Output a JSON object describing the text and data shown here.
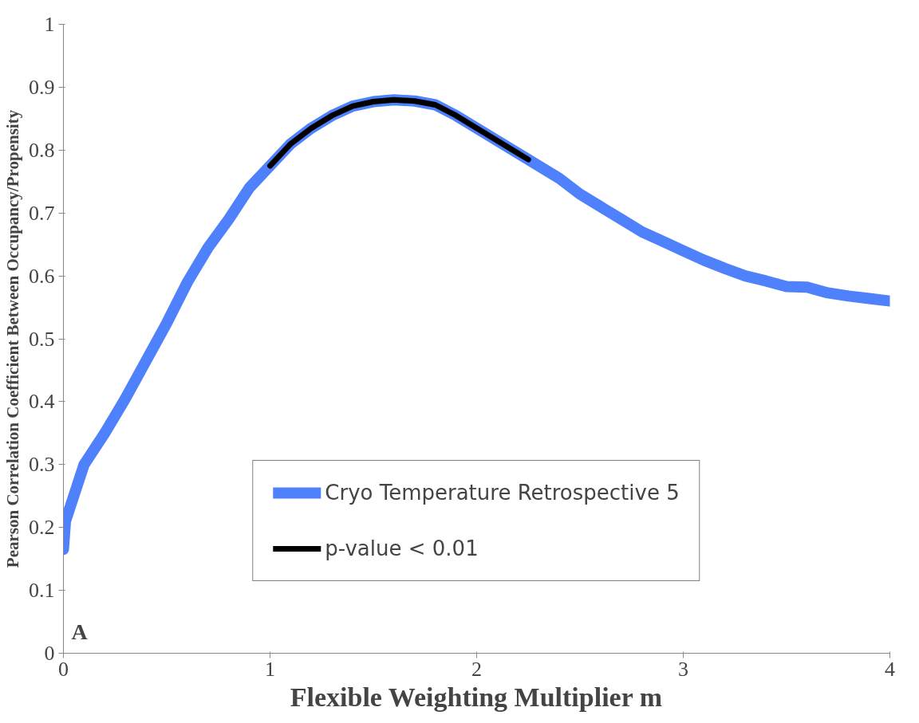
{
  "chart_data": {
    "type": "line",
    "xlabel": "Flexible Weighting Multiplier m",
    "ylabel": "Pearson Correlation Coefficient Between Occupancy/Propensity",
    "annotations": [
      "A"
    ],
    "xlim": [
      0,
      4
    ],
    "xticks": [
      0,
      1,
      2,
      3,
      4
    ],
    "ylim": [
      0,
      1
    ],
    "yticks": [
      0,
      0.1,
      0.2,
      0.3,
      0.4,
      0.5,
      0.6,
      0.7,
      0.8,
      0.9,
      1
    ],
    "grid": false,
    "legend": "bottom",
    "marker": "none",
    "line_style": "solid",
    "series": [
      {
        "name": "Cryo Temperature Retrospective 5",
        "color": "#4f81fd",
        "x": [
          0,
          0.01,
          0.1,
          0.2,
          0.3,
          0.4,
          0.5,
          0.6,
          0.7,
          0.8,
          0.9,
          1.0,
          1.1,
          1.2,
          1.3,
          1.4,
          1.5,
          1.6,
          1.7,
          1.8,
          1.9,
          2.0,
          2.1,
          2.2,
          2.3,
          2.4,
          2.5,
          2.6,
          2.7,
          2.8,
          2.9,
          3.0,
          3.1,
          3.2,
          3.3,
          3.4,
          3.5,
          3.6,
          3.7,
          3.8,
          3.9,
          4.0
        ],
        "values": [
          0.165,
          0.21,
          0.3,
          0.35,
          0.405,
          0.465,
          0.525,
          0.59,
          0.645,
          0.69,
          0.74,
          0.775,
          0.81,
          0.835,
          0.855,
          0.87,
          0.877,
          0.88,
          0.878,
          0.872,
          0.855,
          0.835,
          0.815,
          0.795,
          0.775,
          0.755,
          0.73,
          0.71,
          0.69,
          0.67,
          0.655,
          0.64,
          0.625,
          0.612,
          0.6,
          0.592,
          0.583,
          0.582,
          0.573,
          0.568,
          0.564,
          0.56
        ]
      },
      {
        "name": "p-value < 0.01",
        "color": "#000000",
        "x": [
          1.0,
          1.1,
          1.2,
          1.3,
          1.4,
          1.5,
          1.6,
          1.7,
          1.8,
          1.9,
          2.0,
          2.1,
          2.2,
          2.25
        ],
        "values": [
          0.775,
          0.81,
          0.835,
          0.855,
          0.87,
          0.877,
          0.88,
          0.878,
          0.872,
          0.855,
          0.835,
          0.815,
          0.795,
          0.785
        ]
      }
    ]
  }
}
